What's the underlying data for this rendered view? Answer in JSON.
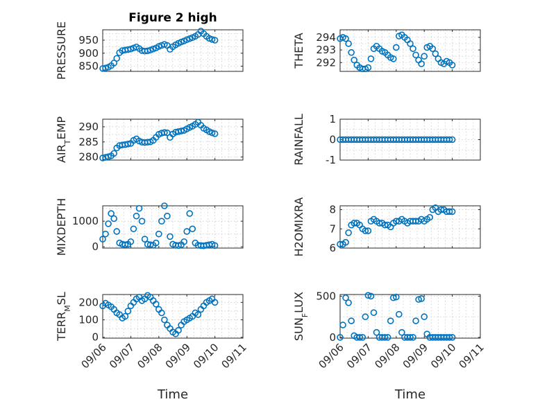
{
  "figure": {
    "title": "Figure 2 high",
    "xlabel": "Time",
    "xticklabels": [
      "09/06",
      "09/07",
      "09/08",
      "09/09",
      "09/10",
      "09/11"
    ],
    "marker_color": "#0072BD",
    "marker": "circle"
  },
  "chart_data": [
    {
      "type": "scatter",
      "ylabel": "PRESSURE",
      "xlim": [
        0,
        5
      ],
      "ylim": [
        830,
        990
      ],
      "yticks": [
        850,
        900,
        950
      ],
      "grid": true,
      "has_title": true,
      "x": [
        0,
        0.1,
        0.2,
        0.3,
        0.4,
        0.5,
        0.6,
        0.7,
        0.8,
        0.9,
        1,
        1.1,
        1.2,
        1.3,
        1.4,
        1.5,
        1.6,
        1.7,
        1.8,
        1.9,
        2,
        2.1,
        2.2,
        2.3,
        2.4,
        2.5,
        2.6,
        2.7,
        2.8,
        2.9,
        3,
        3.1,
        3.2,
        3.3,
        3.4,
        3.5,
        3.6,
        3.7,
        3.8,
        3.9,
        4
      ],
      "y": [
        841,
        843,
        846,
        852,
        862,
        880,
        902,
        910,
        912,
        914,
        916,
        920,
        924,
        918,
        910,
        908,
        909,
        912,
        916,
        920,
        926,
        930,
        934,
        930,
        915,
        925,
        932,
        938,
        943,
        947,
        952,
        956,
        960,
        965,
        972,
        985,
        975,
        965,
        957,
        953,
        950
      ]
    },
    {
      "type": "scatter",
      "ylabel": "THETA",
      "xlim": [
        0,
        5
      ],
      "ylim": [
        291.3,
        294.6
      ],
      "yticks": [
        292,
        293,
        294
      ],
      "grid": true,
      "x": [
        0,
        0.1,
        0.2,
        0.3,
        0.4,
        0.5,
        0.6,
        0.7,
        0.8,
        0.9,
        1,
        1.1,
        1.2,
        1.3,
        1.4,
        1.5,
        1.6,
        1.7,
        1.8,
        1.9,
        2,
        2.1,
        2.2,
        2.3,
        2.4,
        2.5,
        2.6,
        2.7,
        2.8,
        2.9,
        3,
        3.1,
        3.2,
        3.3,
        3.4,
        3.5,
        3.6,
        3.7,
        3.8,
        3.9,
        4
      ],
      "y": [
        293.9,
        294.0,
        293.9,
        293.5,
        292.8,
        292.2,
        291.8,
        291.6,
        291.5,
        291.5,
        291.6,
        292.3,
        293.1,
        293.3,
        293.1,
        292.9,
        292.8,
        292.6,
        292.4,
        292.3,
        293.2,
        294.1,
        294.2,
        294.0,
        293.8,
        293.5,
        293.1,
        292.6,
        292.2,
        291.9,
        292.5,
        293.2,
        293.3,
        293.1,
        292.7,
        292.3,
        292.0,
        291.9,
        292.1,
        292.0,
        291.8
      ]
    },
    {
      "type": "scatter",
      "ylabel": "AIR_TEMP",
      "xlim": [
        0,
        5
      ],
      "ylim": [
        279,
        292.5
      ],
      "yticks": [
        280,
        285,
        290
      ],
      "grid": true,
      "x": [
        0,
        0.1,
        0.2,
        0.3,
        0.4,
        0.5,
        0.6,
        0.7,
        0.8,
        0.9,
        1,
        1.1,
        1.2,
        1.3,
        1.4,
        1.5,
        1.6,
        1.7,
        1.8,
        1.9,
        2,
        2.1,
        2.2,
        2.3,
        2.4,
        2.5,
        2.6,
        2.7,
        2.8,
        2.9,
        3,
        3.1,
        3.2,
        3.3,
        3.4,
        3.5,
        3.6,
        3.7,
        3.8,
        3.9,
        4
      ],
      "y": [
        279.7,
        279.9,
        280.1,
        280.4,
        281.2,
        283.0,
        283.8,
        284.0,
        284.1,
        284.3,
        284.5,
        285.5,
        286.0,
        285.3,
        284.9,
        284.8,
        284.9,
        285.0,
        285.5,
        286.5,
        287.5,
        287.9,
        288.1,
        288.0,
        286.5,
        287.6,
        288.2,
        288.4,
        288.6,
        288.8,
        289.3,
        289.8,
        290.2,
        290.8,
        291.5,
        290.5,
        289.5,
        289.0,
        288.4,
        288.0,
        287.7
      ]
    },
    {
      "type": "scatter",
      "ylabel": "RAINFALL",
      "xlim": [
        0,
        5
      ],
      "ylim": [
        -1,
        1
      ],
      "yticks": [
        -1,
        0,
        1
      ],
      "grid": true,
      "x": [
        0,
        0.1,
        0.2,
        0.3,
        0.4,
        0.5,
        0.6,
        0.7,
        0.8,
        0.9,
        1,
        1.1,
        1.2,
        1.3,
        1.4,
        1.5,
        1.6,
        1.7,
        1.8,
        1.9,
        2,
        2.1,
        2.2,
        2.3,
        2.4,
        2.5,
        2.6,
        2.7,
        2.8,
        2.9,
        3,
        3.1,
        3.2,
        3.3,
        3.4,
        3.5,
        3.6,
        3.7,
        3.8,
        3.9,
        4
      ],
      "y": [
        0,
        0,
        0,
        0,
        0,
        0,
        0,
        0,
        0,
        0,
        0,
        0,
        0,
        0,
        0,
        0,
        0,
        0,
        0,
        0,
        0,
        0,
        0,
        0,
        0,
        0,
        0,
        0,
        0,
        0,
        0,
        0,
        0,
        0,
        0,
        0,
        0,
        0,
        0,
        0,
        0
      ]
    },
    {
      "type": "scatter",
      "ylabel": "MIXDEPTH",
      "xlim": [
        0,
        5
      ],
      "ylim": [
        -50,
        1600
      ],
      "yticks": [
        0,
        1000
      ],
      "grid": true,
      "x": [
        0,
        0.1,
        0.2,
        0.3,
        0.4,
        0.5,
        0.6,
        0.7,
        0.8,
        0.9,
        1,
        1.1,
        1.2,
        1.3,
        1.4,
        1.5,
        1.6,
        1.7,
        1.8,
        1.9,
        2,
        2.1,
        2.2,
        2.3,
        2.4,
        2.5,
        2.6,
        2.7,
        2.8,
        2.9,
        3,
        3.1,
        3.2,
        3.3,
        3.4,
        3.5,
        3.6,
        3.7,
        3.8,
        3.9,
        4
      ],
      "y": [
        300,
        500,
        900,
        1300,
        1100,
        600,
        150,
        100,
        80,
        100,
        200,
        700,
        1200,
        1500,
        1000,
        300,
        100,
        80,
        60,
        150,
        500,
        1000,
        1600,
        1200,
        400,
        100,
        60,
        50,
        80,
        200,
        600,
        1300,
        700,
        150,
        60,
        50,
        40,
        60,
        80,
        100,
        50
      ]
    },
    {
      "type": "scatter",
      "ylabel": "H2OMIXRA",
      "xlim": [
        0,
        5
      ],
      "ylim": [
        6,
        8.2
      ],
      "yticks": [
        6,
        7,
        8
      ],
      "grid": true,
      "x": [
        0,
        0.1,
        0.2,
        0.3,
        0.4,
        0.5,
        0.6,
        0.7,
        0.8,
        0.9,
        1,
        1.1,
        1.2,
        1.3,
        1.4,
        1.5,
        1.6,
        1.7,
        1.8,
        1.9,
        2,
        2.1,
        2.2,
        2.3,
        2.4,
        2.5,
        2.6,
        2.7,
        2.8,
        2.9,
        3,
        3.1,
        3.2,
        3.3,
        3.4,
        3.5,
        3.6,
        3.7,
        3.8,
        3.9,
        4
      ],
      "y": [
        6.2,
        6.2,
        6.3,
        6.8,
        7.2,
        7.3,
        7.3,
        7.2,
        7.0,
        6.9,
        6.9,
        7.4,
        7.5,
        7.4,
        7.3,
        7.3,
        7.2,
        7.2,
        7.1,
        7.3,
        7.4,
        7.4,
        7.5,
        7.4,
        7.3,
        7.4,
        7.4,
        7.4,
        7.4,
        7.5,
        7.4,
        7.5,
        7.6,
        8.0,
        8.1,
        7.9,
        8.0,
        8.0,
        7.9,
        7.9,
        7.9
      ]
    },
    {
      "type": "scatter",
      "ylabel": "TERR_MSL",
      "xlim": [
        0,
        5
      ],
      "ylim": [
        -5,
        245
      ],
      "yticks": [
        0,
        100,
        200
      ],
      "grid": true,
      "x": [
        0,
        0.1,
        0.2,
        0.3,
        0.4,
        0.5,
        0.6,
        0.7,
        0.8,
        0.9,
        1,
        1.1,
        1.2,
        1.3,
        1.4,
        1.5,
        1.6,
        1.7,
        1.8,
        1.9,
        2,
        2.1,
        2.2,
        2.3,
        2.4,
        2.5,
        2.6,
        2.7,
        2.8,
        2.9,
        3,
        3.1,
        3.2,
        3.3,
        3.4,
        3.5,
        3.6,
        3.7,
        3.8,
        3.9,
        4
      ],
      "y": [
        180,
        195,
        185,
        175,
        160,
        140,
        130,
        110,
        120,
        150,
        180,
        200,
        220,
        230,
        210,
        220,
        240,
        230,
        210,
        190,
        160,
        140,
        100,
        70,
        50,
        30,
        20,
        40,
        70,
        90,
        100,
        110,
        120,
        140,
        130,
        160,
        180,
        200,
        210,
        220,
        200
      ]
    },
    {
      "type": "scatter",
      "ylabel": "SUN_FLUX",
      "xlim": [
        0,
        5
      ],
      "ylim": [
        -10,
        520
      ],
      "yticks": [
        0,
        500
      ],
      "grid": true,
      "x": [
        0,
        0.1,
        0.2,
        0.3,
        0.4,
        0.5,
        0.6,
        0.7,
        0.8,
        0.9,
        1,
        1.1,
        1.2,
        1.3,
        1.4,
        1.5,
        1.6,
        1.7,
        1.8,
        1.9,
        2,
        2.1,
        2.2,
        2.3,
        2.4,
        2.5,
        2.6,
        2.7,
        2.8,
        2.9,
        3,
        3.1,
        3.2,
        3.3,
        3.4,
        3.5,
        3.6,
        3.7,
        3.8,
        3.9,
        4
      ],
      "y": [
        0,
        150,
        480,
        420,
        200,
        20,
        0,
        0,
        0,
        250,
        510,
        500,
        300,
        60,
        0,
        0,
        0,
        0,
        200,
        480,
        490,
        280,
        60,
        0,
        0,
        0,
        0,
        200,
        460,
        470,
        250,
        40,
        0,
        0,
        0,
        0,
        0,
        0,
        0,
        0,
        0
      ]
    }
  ]
}
